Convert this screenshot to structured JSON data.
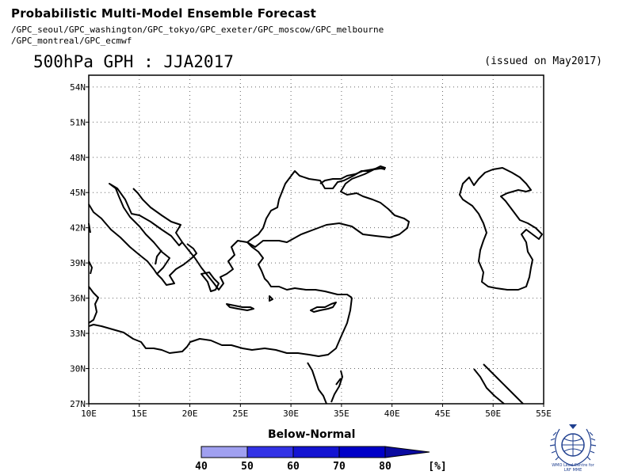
{
  "header": {
    "title": "Probabilistic Multi-Model Ensemble Forecast",
    "models_line1": "/GPC_seoul/GPC_washington/GPC_tokyo/GPC_exeter/GPC_moscow/GPC_melbourne",
    "models_line2": "/GPC_montreal/GPC_ecmwf",
    "subtitle": "500hPa GPH : JJA2017",
    "issued": "(issued on May2017)"
  },
  "map": {
    "lon_range": [
      10,
      55
    ],
    "lat_range": [
      27,
      55
    ],
    "lon_ticks": [
      "10E",
      "15E",
      "20E",
      "25E",
      "30E",
      "35E",
      "40E",
      "45E",
      "50E",
      "55E"
    ],
    "lat_ticks": [
      "27N",
      "30N",
      "33N",
      "36N",
      "39N",
      "42N",
      "45N",
      "48N",
      "51N",
      "54N"
    ],
    "grid": "dotted",
    "coastline_color": "#000000"
  },
  "legend": {
    "title": "Below-Normal",
    "labels": [
      "40",
      "50",
      "60",
      "70",
      "80"
    ],
    "unit": "[%]",
    "colors": [
      "#a0a0f0",
      "#3232e6",
      "#1414d2",
      "#0000c8",
      "#0a0aa0"
    ]
  },
  "logo": {
    "text_line1": "WMO Lead Centre for",
    "text_line2": "LRF MME",
    "icon": "wmo-emblem-icon"
  }
}
